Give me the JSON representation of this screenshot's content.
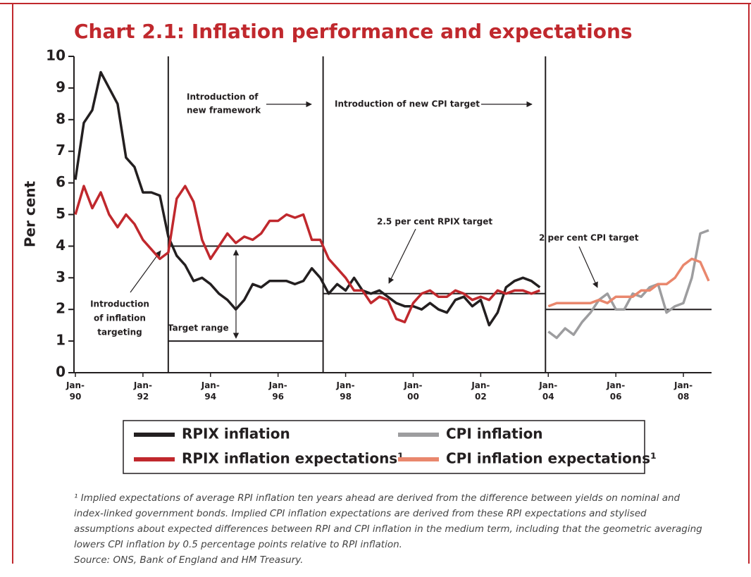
{
  "chart_data": {
    "type": "line",
    "title": "Chart 2.1: Inflation performance and expectations",
    "ylabel": "Per cent",
    "ylim": [
      0,
      10
    ],
    "yticks": [
      0,
      1,
      2,
      3,
      4,
      5,
      6,
      7,
      8,
      9,
      10
    ],
    "xlim": [
      "1990-01",
      "2008-11"
    ],
    "xticks": [
      {
        "value": "1990-01",
        "label": "Jan-90"
      },
      {
        "value": "1992-01",
        "label": "Jan-92"
      },
      {
        "value": "1994-01",
        "label": "Jan-94"
      },
      {
        "value": "1996-01",
        "label": "Jan-96"
      },
      {
        "value": "1998-01",
        "label": "Jan-98"
      },
      {
        "value": "2000-01",
        "label": "Jan-00"
      },
      {
        "value": "2002-01",
        "label": "Jan-02"
      },
      {
        "value": "2004-01",
        "label": "Jan-04"
      },
      {
        "value": "2006-01",
        "label": "Jan-06"
      },
      {
        "value": "2008-01",
        "label": "Jan-08"
      }
    ],
    "grid": false,
    "x": [
      "1990-01",
      "1990-04",
      "1990-07",
      "1990-10",
      "1991-01",
      "1991-04",
      "1991-07",
      "1991-10",
      "1992-01",
      "1992-04",
      "1992-07",
      "1992-10",
      "1993-01",
      "1993-04",
      "1993-07",
      "1993-10",
      "1994-01",
      "1994-04",
      "1994-07",
      "1994-10",
      "1995-01",
      "1995-04",
      "1995-07",
      "1995-10",
      "1996-01",
      "1996-04",
      "1996-07",
      "1996-10",
      "1997-01",
      "1997-04",
      "1997-07",
      "1997-10",
      "1998-01",
      "1998-04",
      "1998-07",
      "1998-10",
      "1999-01",
      "1999-04",
      "1999-07",
      "1999-10",
      "2000-01",
      "2000-04",
      "2000-07",
      "2000-10",
      "2001-01",
      "2001-04",
      "2001-07",
      "2001-10",
      "2002-01",
      "2002-04",
      "2002-07",
      "2002-10",
      "2003-01",
      "2003-04",
      "2003-07",
      "2003-10",
      "2004-01",
      "2004-04",
      "2004-07",
      "2004-10",
      "2005-01",
      "2005-04",
      "2005-07",
      "2005-10",
      "2006-01",
      "2006-04",
      "2006-07",
      "2006-10",
      "2007-01",
      "2007-04",
      "2007-07",
      "2007-10",
      "2008-01",
      "2008-04",
      "2008-07",
      "2008-10"
    ],
    "series": [
      {
        "name": "RPIX inflation",
        "color": "#231f20",
        "values": [
          6.1,
          7.9,
          8.3,
          9.5,
          9.0,
          8.5,
          6.8,
          6.5,
          5.7,
          5.7,
          5.6,
          4.3,
          3.7,
          3.4,
          2.9,
          3.0,
          2.8,
          2.5,
          2.3,
          2.0,
          2.3,
          2.8,
          2.7,
          2.9,
          2.9,
          2.9,
          2.8,
          2.9,
          3.3,
          3.0,
          2.5,
          2.8,
          2.6,
          3.0,
          2.6,
          2.5,
          2.6,
          2.4,
          2.2,
          2.1,
          2.1,
          2.0,
          2.2,
          2.0,
          1.9,
          2.3,
          2.4,
          2.1,
          2.3,
          1.5,
          1.9,
          2.7,
          2.9,
          3.0,
          2.9,
          2.7,
          null,
          null,
          null,
          null,
          null,
          null,
          null,
          null,
          null,
          null,
          null,
          null,
          null,
          null,
          null,
          null,
          null,
          null,
          null,
          null
        ]
      },
      {
        "name": "CPI inflation",
        "color": "#9d9d9f",
        "values": [
          null,
          null,
          null,
          null,
          null,
          null,
          null,
          null,
          null,
          null,
          null,
          null,
          null,
          null,
          null,
          null,
          null,
          null,
          null,
          null,
          null,
          null,
          null,
          null,
          null,
          null,
          null,
          null,
          null,
          null,
          null,
          null,
          null,
          null,
          null,
          null,
          null,
          null,
          null,
          null,
          null,
          null,
          null,
          null,
          null,
          null,
          null,
          null,
          null,
          null,
          null,
          null,
          null,
          null,
          null,
          null,
          1.3,
          1.1,
          1.4,
          1.2,
          1.6,
          1.9,
          2.3,
          2.5,
          2.0,
          2.0,
          2.5,
          2.4,
          2.7,
          2.8,
          1.9,
          2.1,
          2.2,
          3.0,
          4.4,
          4.5
        ]
      },
      {
        "name": "RPIX inflation expectations¹",
        "color": "#c0282d",
        "values": [
          5.0,
          5.9,
          5.2,
          5.7,
          5.0,
          4.6,
          5.0,
          4.7,
          4.2,
          3.9,
          3.6,
          3.8,
          5.5,
          5.9,
          5.4,
          4.2,
          3.6,
          4.0,
          4.4,
          4.1,
          4.3,
          4.2,
          4.4,
          4.8,
          4.8,
          5.0,
          4.9,
          5.0,
          4.2,
          4.2,
          3.6,
          3.3,
          3.0,
          2.6,
          2.6,
          2.2,
          2.4,
          2.3,
          1.7,
          1.6,
          2.2,
          2.5,
          2.6,
          2.4,
          2.4,
          2.6,
          2.5,
          2.3,
          2.4,
          2.3,
          2.6,
          2.5,
          2.6,
          2.6,
          2.5,
          2.6,
          null,
          null,
          null,
          null,
          null,
          null,
          null,
          null,
          null,
          null,
          null,
          null,
          null,
          null,
          null,
          null,
          null,
          null,
          null,
          null
        ]
      },
      {
        "name": "CPI inflation expectations¹",
        "color": "#e9876d",
        "values": [
          null,
          null,
          null,
          null,
          null,
          null,
          null,
          null,
          null,
          null,
          null,
          null,
          null,
          null,
          null,
          null,
          null,
          null,
          null,
          null,
          null,
          null,
          null,
          null,
          null,
          null,
          null,
          null,
          null,
          null,
          null,
          null,
          null,
          null,
          null,
          null,
          null,
          null,
          null,
          null,
          null,
          null,
          null,
          null,
          null,
          null,
          null,
          null,
          null,
          null,
          null,
          null,
          null,
          null,
          null,
          null,
          2.1,
          2.2,
          2.2,
          2.2,
          2.2,
          2.2,
          2.3,
          2.2,
          2.4,
          2.4,
          2.4,
          2.6,
          2.6,
          2.8,
          2.8,
          3.0,
          3.4,
          3.6,
          3.5,
          2.9
        ]
      }
    ],
    "events": [
      {
        "x": "1992-10",
        "label": [
          "Introduction",
          "of inflation",
          "targeting"
        ]
      },
      {
        "x": "1997-05",
        "label": [
          "Introduction of",
          "new framework"
        ]
      },
      {
        "x": "2003-12",
        "label": [
          "Introduction of new CPI target"
        ]
      }
    ],
    "reference_lines": [
      {
        "label": "Target range",
        "y": [
          1,
          4
        ],
        "x": [
          "1992-10",
          "1997-05"
        ]
      },
      {
        "label": "2.5 per cent RPIX target",
        "y": [
          2.5
        ],
        "x": [
          "1997-05",
          "2003-12"
        ]
      },
      {
        "label": "2 per cent CPI target",
        "y": [
          2
        ],
        "x": [
          "2003-12",
          "2008-11"
        ]
      }
    ],
    "footnote": "¹ Implied expectations of average RPI inflation ten years ahead are derived from the difference between yields on nominal and index-linked government bonds. Implied CPI inflation expectations are derived from these RPI expectations and stylised assumptions about expected differences between RPI and CPI inflation in the medium term, including that the geometric averaging lowers CPI inflation by 0.5 percentage points relative to RPI inflation.",
    "source": "Source: ONS, Bank of England and HM Treasury."
  }
}
